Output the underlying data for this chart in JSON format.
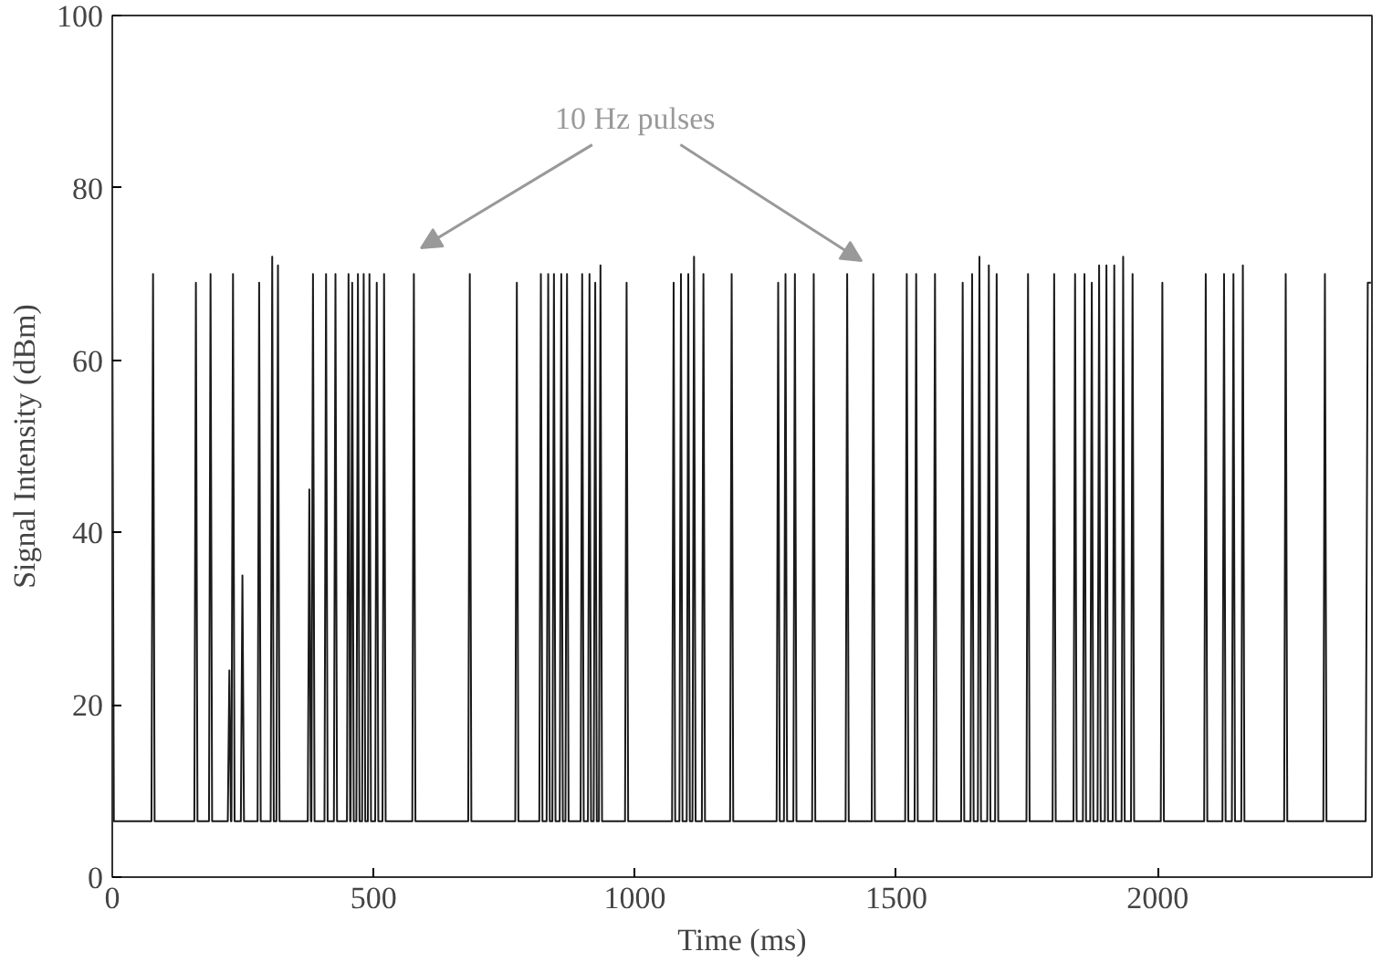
{
  "chart_data": {
    "type": "line",
    "xlabel": "Time (ms)",
    "ylabel": "Signal Intensity (dBm)",
    "xlim": [
      0,
      2410
    ],
    "ylim": [
      0,
      100
    ],
    "xticks": [
      0,
      500,
      1000,
      1500,
      2000
    ],
    "yticks": [
      0,
      20,
      40,
      60,
      80,
      100
    ],
    "grid": false,
    "marker": "none",
    "line_style": "solid",
    "annotations": [
      "10 Hz pulses"
    ],
    "series": [
      {
        "color": "#1a1a1a",
        "x": [
          0,
          3,
          75,
          78,
          81,
          157,
          160,
          163,
          185,
          188,
          191,
          221,
          224,
          227,
          228,
          231,
          234,
          246,
          249,
          252,
          278,
          281,
          284,
          303,
          306,
          309,
          314,
          317,
          320,
          374,
          377,
          380,
          381,
          384,
          387,
          406,
          409,
          412,
          424,
          427,
          430,
          449,
          452,
          455,
          456,
          459,
          462,
          467,
          470,
          473,
          478,
          481,
          484,
          489,
          492,
          495,
          503,
          506,
          509,
          517,
          520,
          523,
          574,
          577,
          580,
          681,
          684,
          687,
          771,
          774,
          777,
          817,
          820,
          823,
          831,
          834,
          837,
          842,
          845,
          848,
          856,
          859,
          862,
          867,
          870,
          873,
          896,
          899,
          902,
          910,
          913,
          916,
          921,
          924,
          927,
          931,
          934,
          937,
          981,
          984,
          987,
          1071,
          1074,
          1077,
          1085,
          1088,
          1091,
          1099,
          1102,
          1105,
          1110,
          1113,
          1116,
          1128,
          1131,
          1134,
          1182,
          1185,
          1188,
          1271,
          1274,
          1277,
          1285,
          1288,
          1291,
          1303,
          1306,
          1309,
          1339,
          1342,
          1345,
          1403,
          1406,
          1409,
          1453,
          1456,
          1459,
          1517,
          1520,
          1523,
          1535,
          1538,
          1541,
          1571,
          1574,
          1577,
          1624,
          1627,
          1630,
          1642,
          1645,
          1648,
          1656,
          1659,
          1662,
          1674,
          1677,
          1680,
          1689,
          1692,
          1695,
          1749,
          1752,
          1755,
          1799,
          1802,
          1805,
          1839,
          1842,
          1845,
          1857,
          1860,
          1863,
          1871,
          1874,
          1877,
          1885,
          1888,
          1891,
          1899,
          1902,
          1905,
          1914,
          1917,
          1920,
          1931,
          1934,
          1937,
          1949,
          1952,
          1955,
          2006,
          2009,
          2012,
          2089,
          2092,
          2095,
          2124,
          2127,
          2130,
          2142,
          2145,
          2148,
          2160,
          2163,
          2166,
          2242,
          2245,
          2248,
          2317,
          2320,
          2323,
          2398,
          2402,
          2408
        ],
        "values": [
          70,
          6.5,
          6.5,
          70,
          6.5,
          6.5,
          69,
          6.5,
          6.5,
          70,
          6.5,
          6.5,
          24,
          6.5,
          6.5,
          70,
          6.5,
          6.5,
          35,
          6.5,
          6.5,
          69,
          6.5,
          6.5,
          72,
          6.5,
          6.5,
          71,
          6.5,
          6.5,
          45,
          6.5,
          6.5,
          70,
          6.5,
          6.5,
          70,
          6.5,
          6.5,
          70,
          6.5,
          6.5,
          70,
          6.5,
          6.5,
          69,
          6.5,
          6.5,
          70,
          6.5,
          6.5,
          70,
          6.5,
          6.5,
          70,
          6.5,
          6.5,
          69,
          6.5,
          6.5,
          70,
          6.5,
          6.5,
          70,
          6.5,
          6.5,
          70,
          6.5,
          6.5,
          69,
          6.5,
          6.5,
          70,
          6.5,
          6.5,
          70,
          6.5,
          6.5,
          70,
          6.5,
          6.5,
          70,
          6.5,
          6.5,
          70,
          6.5,
          6.5,
          70,
          6.5,
          6.5,
          70,
          6.5,
          6.5,
          69,
          6.5,
          6.5,
          71,
          6.5,
          6.5,
          69,
          6.5,
          6.5,
          69,
          6.5,
          6.5,
          70,
          6.5,
          6.5,
          70,
          6.5,
          6.5,
          72,
          6.5,
          6.5,
          70,
          6.5,
          6.5,
          70,
          6.5,
          6.5,
          69,
          6.5,
          6.5,
          70,
          6.5,
          6.5,
          70,
          6.5,
          6.5,
          70,
          6.5,
          6.5,
          70,
          6.5,
          6.5,
          70,
          6.5,
          6.5,
          70,
          6.5,
          6.5,
          70,
          6.5,
          6.5,
          70,
          6.5,
          6.5,
          69,
          6.5,
          6.5,
          70,
          6.5,
          6.5,
          72,
          6.5,
          6.5,
          71,
          6.5,
          6.5,
          70,
          6.5,
          6.5,
          70,
          6.5,
          6.5,
          70,
          6.5,
          6.5,
          70,
          6.5,
          6.5,
          70,
          6.5,
          6.5,
          69,
          6.5,
          6.5,
          71,
          6.5,
          6.5,
          71,
          6.5,
          6.5,
          71,
          6.5,
          6.5,
          72,
          6.5,
          6.5,
          70,
          6.5,
          6.5,
          69,
          6.5,
          6.5,
          70,
          6.5,
          6.5,
          70,
          6.5,
          6.5,
          70,
          6.5,
          6.5,
          71,
          6.5,
          6.5,
          70,
          6.5,
          6.5,
          70,
          6.5,
          6.5,
          69,
          69
        ]
      }
    ]
  }
}
